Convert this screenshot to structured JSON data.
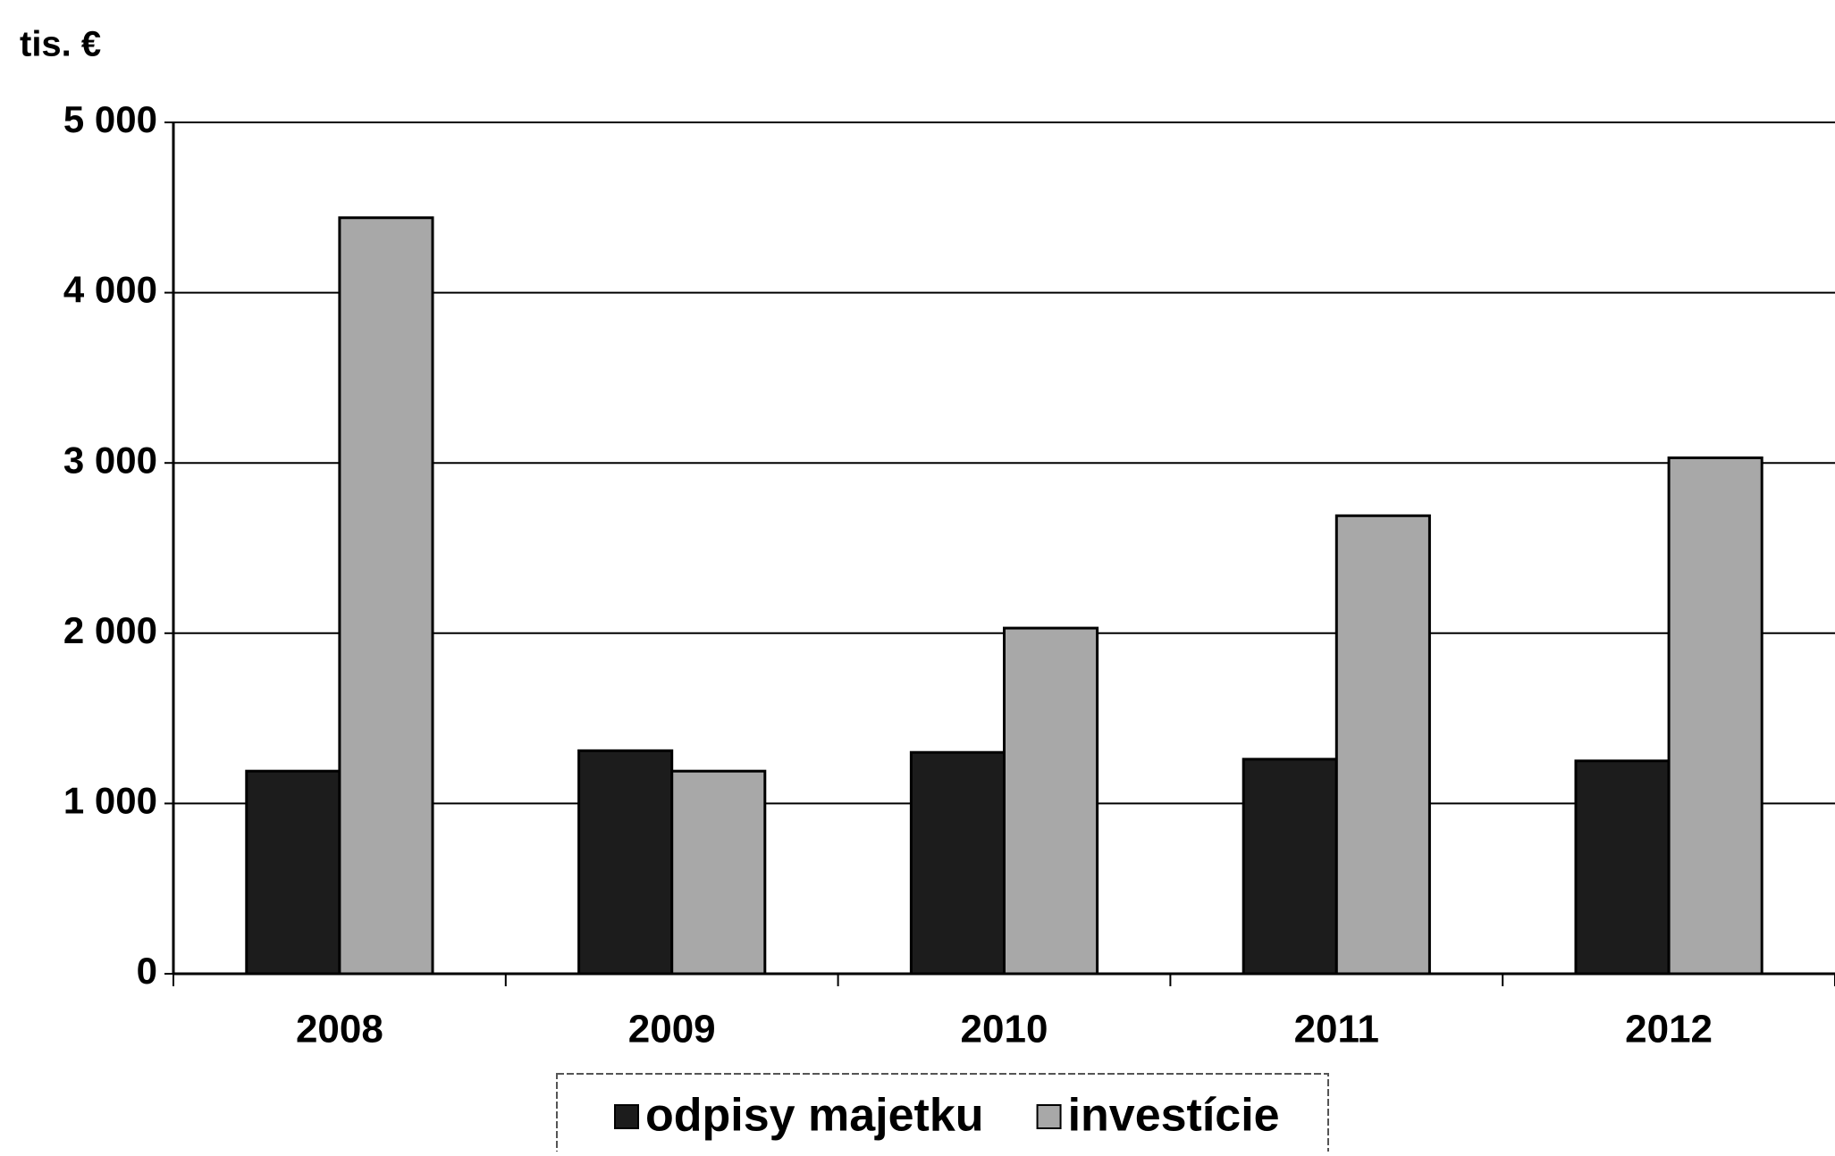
{
  "chart_data": {
    "type": "bar",
    "y_unit_label": "tis. €",
    "categories": [
      "2008",
      "2009",
      "2010",
      "2011",
      "2012"
    ],
    "series": [
      {
        "name": "odpisy majetku",
        "color": "#1c1c1c",
        "values": [
          1190,
          1310,
          1300,
          1260,
          1250
        ]
      },
      {
        "name": "investície",
        "color": "#a8a8a8",
        "values": [
          4440,
          1190,
          2030,
          2690,
          3030
        ]
      }
    ],
    "ylim": [
      0,
      5000
    ],
    "yticks": [
      0,
      {
        "value": 1000,
        "label": "1 000"
      },
      {
        "value": 2000,
        "label": "2 000"
      },
      {
        "value": 3000,
        "label": "3 000"
      },
      {
        "value": 4000,
        "label": "4 000"
      },
      {
        "value": 5000,
        "label": "5 000"
      }
    ],
    "grid": true,
    "legend": "bottom"
  }
}
